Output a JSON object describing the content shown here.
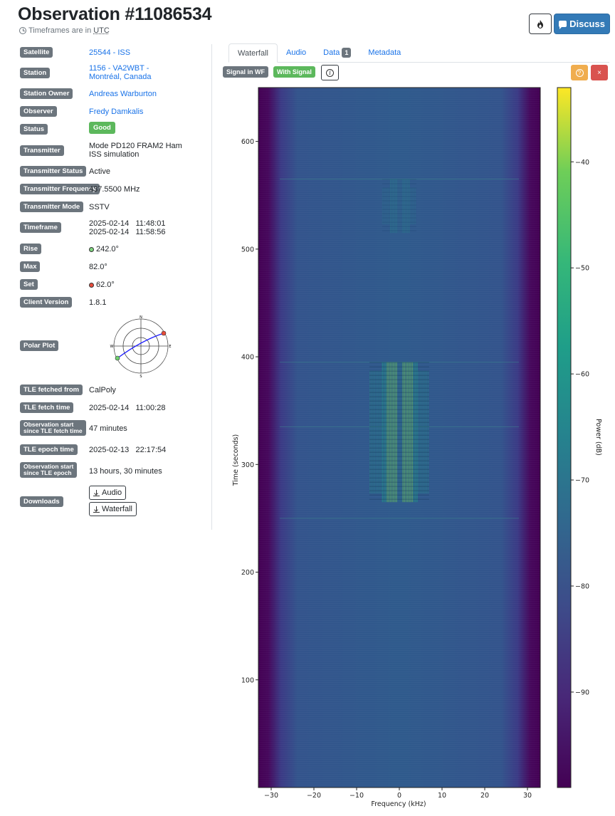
{
  "header": {
    "title": "Observation #11086534",
    "subtitle_prefix": "Timeframes are in",
    "subtitle_utc": "UTC",
    "discuss_label": "Discuss"
  },
  "details": {
    "satellite": {
      "label": "Satellite",
      "value": "25544 - ISS"
    },
    "station": {
      "label": "Station",
      "line1": "1156 - VA2WBT -",
      "line2": "Montréal, Canada"
    },
    "station_owner": {
      "label": "Station Owner",
      "value": "Andreas Warburton"
    },
    "observer": {
      "label": "Observer",
      "value": "Fredy Damkalis"
    },
    "status": {
      "label": "Status",
      "value": "Good"
    },
    "transmitter": {
      "label": "Transmitter",
      "line1": "Mode PD120 FRAM2 Ham",
      "line2": "ISS simulation"
    },
    "transmitter_status": {
      "label": "Transmitter Status",
      "value": "Active"
    },
    "transmitter_frequency": {
      "label": "Transmitter Frequency",
      "value": "437.5500 MHz"
    },
    "transmitter_mode": {
      "label": "Transmitter Mode",
      "value": "SSTV"
    },
    "timeframe": {
      "label": "Timeframe",
      "start_date": "2025-02-14",
      "start_time": "11:48:01",
      "end_date": "2025-02-14",
      "end_time": "11:58:56"
    },
    "rise": {
      "label": "Rise",
      "value": "242.0°"
    },
    "max": {
      "label": "Max",
      "value": "82.0°"
    },
    "set": {
      "label": "Set",
      "value": "62.0°"
    },
    "client_version": {
      "label": "Client Version",
      "value": "1.8.1"
    },
    "polar_plot": {
      "label": "Polar Plot",
      "n": "N",
      "e": "E",
      "s": "S",
      "w": "W"
    },
    "tle_fetched_from": {
      "label": "TLE fetched from",
      "value": "CalPoly"
    },
    "tle_fetch_time": {
      "label": "TLE fetch time",
      "date": "2025-02-14",
      "time": "11:00:28"
    },
    "obs_since_fetch": {
      "label_line1": "Observation start",
      "label_line2": "since TLE fetch time",
      "value": "47 minutes"
    },
    "tle_epoch_time": {
      "label": "TLE epoch time",
      "date": "2025-02-13",
      "time": "22:17:54"
    },
    "obs_since_epoch": {
      "label_line1": "Observation start",
      "label_line2": "since TLE epoch",
      "value": "13 hours, 30 minutes"
    },
    "downloads": {
      "label": "Downloads",
      "audio": "Audio",
      "waterfall": "Waterfall"
    }
  },
  "tabs": {
    "waterfall": "Waterfall",
    "audio": "Audio",
    "data": "Data",
    "data_count": "1",
    "metadata": "Metadata"
  },
  "waterfall_tags": {
    "signal_in_wf": "Signal in WF",
    "with_signal": "With Signal",
    "help": "?",
    "close": "×"
  },
  "colors": {
    "signal_tag": "#6c757d",
    "with_signal_tag": "#5cb85c",
    "help_button": "#f0ad4e",
    "close_button": "#d9534f",
    "link": "#1a73e8"
  },
  "chart_data": {
    "type": "heatmap",
    "xlabel": "Frequency (kHz)",
    "ylabel": "Time (seconds)",
    "colorbar_label": "Power (dB)",
    "xlim": [
      -33,
      33
    ],
    "ylim": [
      0,
      650
    ],
    "xticks": [
      -30,
      -20,
      -10,
      0,
      10,
      20,
      30
    ],
    "yticks": [
      100,
      200,
      300,
      400,
      500,
      600
    ],
    "colorbar_range": [
      -99,
      -33
    ],
    "colorbar_ticks": [
      -40,
      -50,
      -60,
      -70,
      -80,
      -90
    ],
    "colormap": "viridis",
    "signals": [
      {
        "freq_range": [
          -7,
          7
        ],
        "time_range": [
          265,
          395
        ],
        "level": -55
      },
      {
        "freq_range": [
          -4,
          4
        ],
        "time_range": [
          515,
          565
        ],
        "level": -75
      }
    ]
  }
}
